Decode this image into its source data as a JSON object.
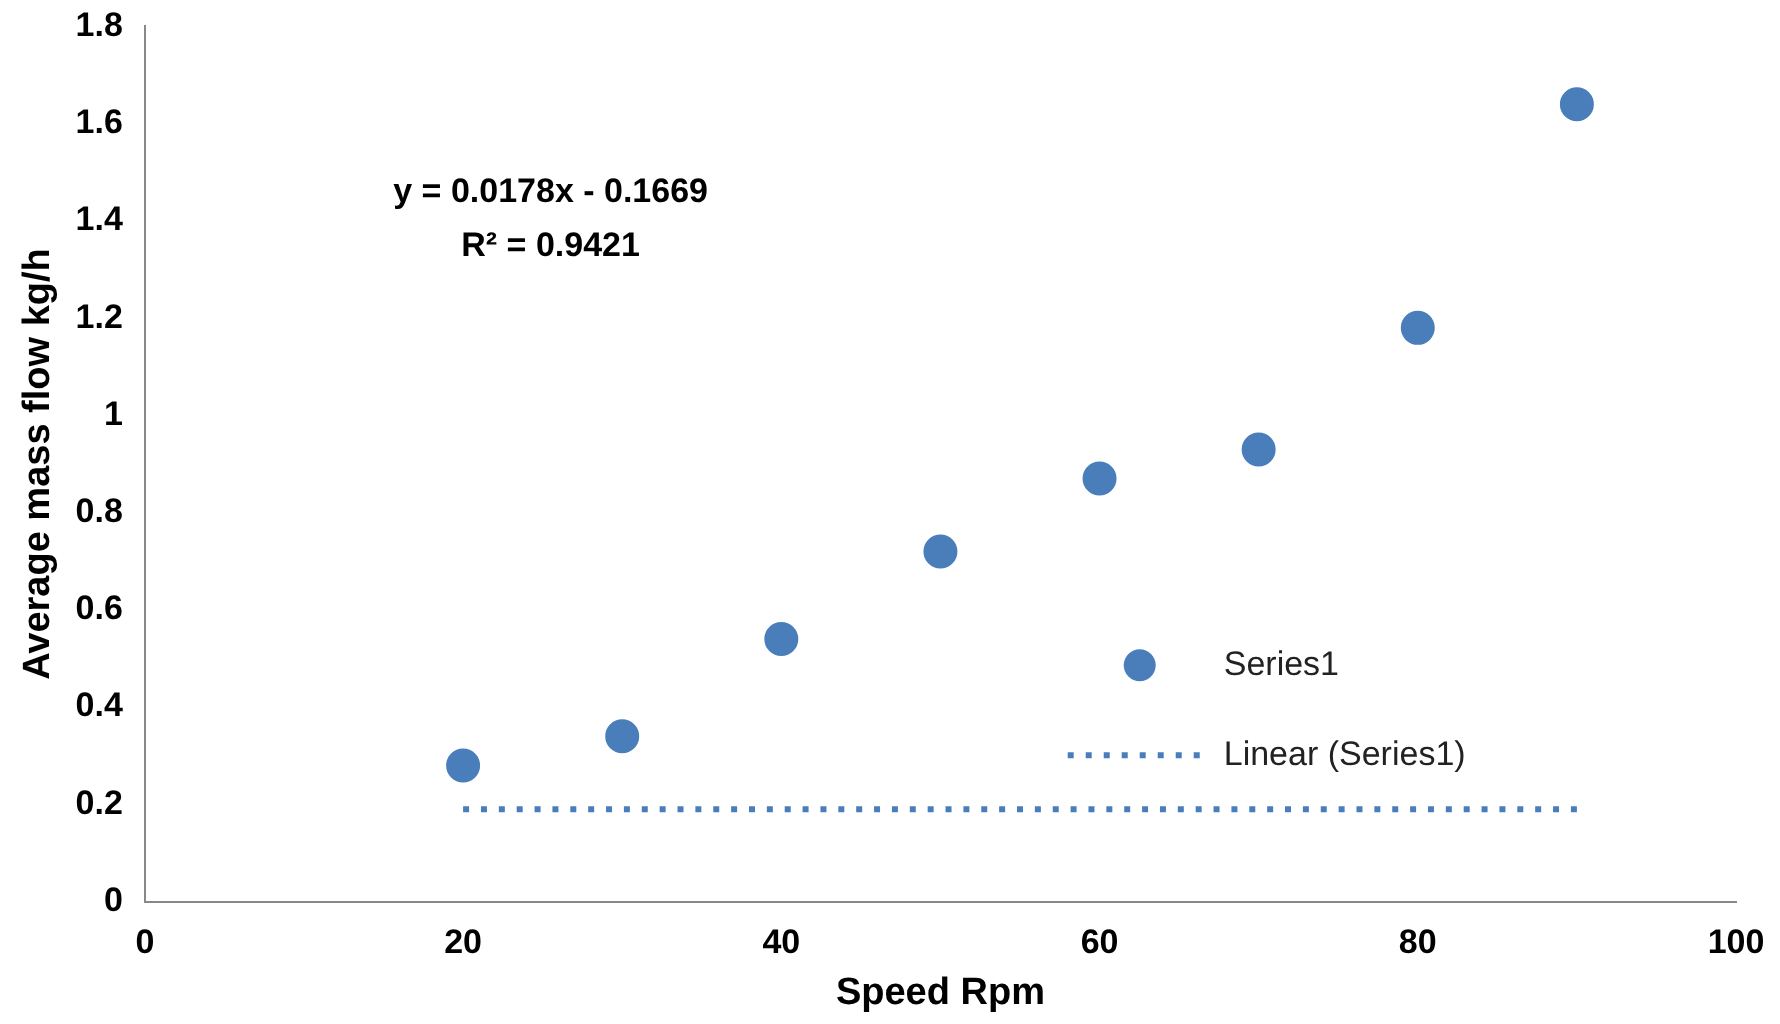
{
  "chart_data": {
    "type": "scatter",
    "xlabel": "Speed Rpm",
    "ylabel": "Average mass flow kg/h",
    "annotations": [
      "y = 0.0178x - 0.1669",
      "R² = 0.9421"
    ],
    "series": [
      {
        "name": "Series1",
        "type": "scatter",
        "color": "#4a7ebb",
        "marker": "circle",
        "x": [
          20,
          30,
          40,
          50,
          60,
          70,
          80,
          90
        ],
        "values": [
          0.28,
          0.34,
          0.54,
          0.72,
          0.87,
          0.93,
          1.18,
          1.64
        ]
      },
      {
        "name": "Linear (Series1)",
        "type": "line",
        "color": "#4a7ebb",
        "marker": "none",
        "line_style": "dotted",
        "x": [
          20,
          90
        ],
        "values": [
          0.19,
          0.19
        ]
      }
    ],
    "xlim": [
      0,
      100
    ],
    "xticks": [
      0,
      20,
      40,
      60,
      80,
      100
    ],
    "ylim": [
      0,
      1.8
    ],
    "yticks": [
      0,
      0.2,
      0.4,
      0.6,
      0.8,
      1,
      1.2,
      1.4,
      1.6,
      1.8
    ],
    "grid": false,
    "legend": "right"
  }
}
